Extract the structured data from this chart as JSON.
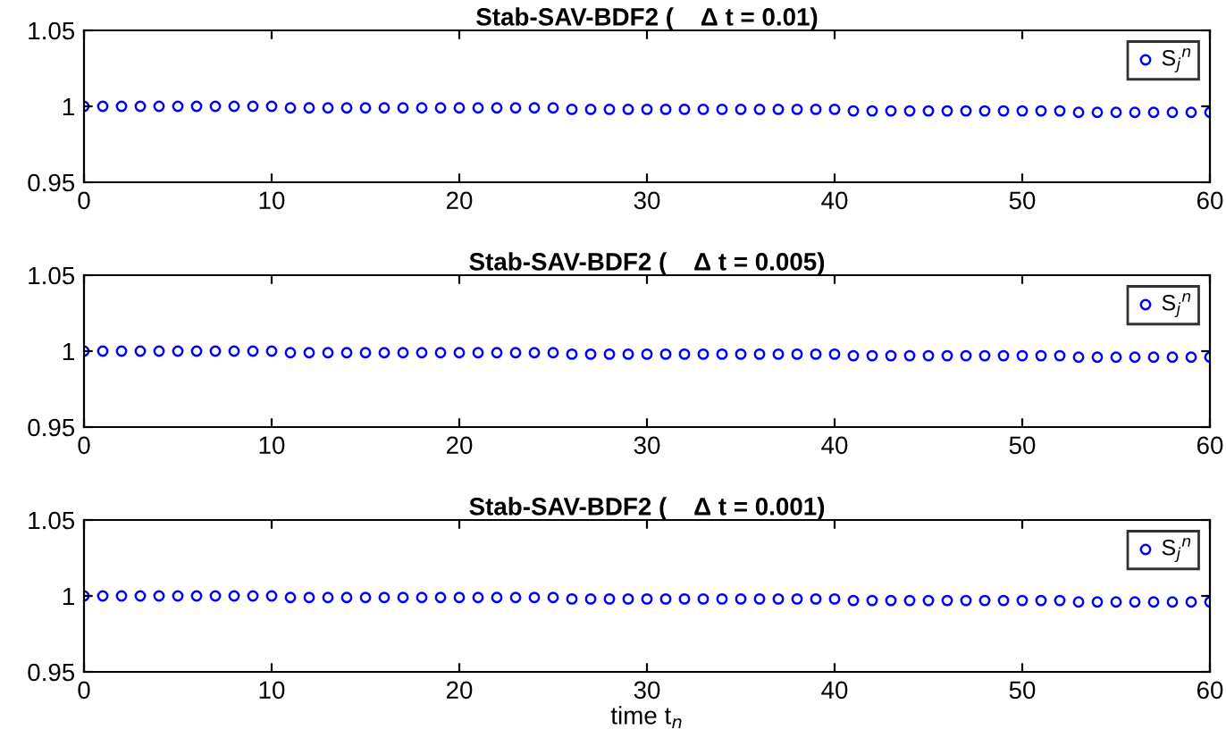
{
  "chart_data": [
    {
      "type": "scatter",
      "title": "Stab-SAV-BDF2 (    Δ t = 0.01)",
      "x": [
        0,
        1,
        2,
        3,
        4,
        5,
        6,
        7,
        8,
        9,
        10,
        11,
        12,
        13,
        14,
        15,
        16,
        17,
        18,
        19,
        20,
        21,
        22,
        23,
        24,
        25,
        26,
        27,
        28,
        29,
        30,
        31,
        32,
        33,
        34,
        35,
        36,
        37,
        38,
        39,
        40,
        41,
        42,
        43,
        44,
        45,
        46,
        47,
        48,
        49,
        50,
        51,
        52,
        53,
        54,
        55,
        56,
        57,
        58,
        59,
        60
      ],
      "series": [
        {
          "name": "S$_{j}$$^{n}$",
          "color": "#0000ff",
          "values": [
            1.0,
            1.0,
            1.0,
            1.0,
            1.0,
            1.0,
            1.0,
            1.0,
            1.0,
            1.0,
            1.0,
            0.999,
            0.999,
            0.999,
            0.999,
            0.999,
            0.999,
            0.999,
            0.999,
            0.999,
            0.999,
            0.999,
            0.999,
            0.999,
            0.999,
            0.999,
            0.998,
            0.998,
            0.998,
            0.998,
            0.998,
            0.998,
            0.998,
            0.998,
            0.998,
            0.998,
            0.998,
            0.998,
            0.998,
            0.998,
            0.998,
            0.997,
            0.997,
            0.997,
            0.997,
            0.997,
            0.997,
            0.997,
            0.997,
            0.997,
            0.997,
            0.997,
            0.997,
            0.996,
            0.996,
            0.996,
            0.996,
            0.996,
            0.996,
            0.996,
            0.996
          ]
        }
      ],
      "xlim": [
        0,
        60
      ],
      "xticks": [
        0,
        10,
        20,
        30,
        40,
        50,
        60
      ],
      "ylim": [
        0.95,
        1.05
      ],
      "yticks": [
        0.95,
        1,
        1.05
      ],
      "marker": "circle",
      "legend": "top right",
      "grid": false
    },
    {
      "type": "scatter",
      "title": "Stab-SAV-BDF2 (    Δ t = 0.005)",
      "x": [
        0,
        1,
        2,
        3,
        4,
        5,
        6,
        7,
        8,
        9,
        10,
        11,
        12,
        13,
        14,
        15,
        16,
        17,
        18,
        19,
        20,
        21,
        22,
        23,
        24,
        25,
        26,
        27,
        28,
        29,
        30,
        31,
        32,
        33,
        34,
        35,
        36,
        37,
        38,
        39,
        40,
        41,
        42,
        43,
        44,
        45,
        46,
        47,
        48,
        49,
        50,
        51,
        52,
        53,
        54,
        55,
        56,
        57,
        58,
        59,
        60
      ],
      "series": [
        {
          "name": "S$_{j}$$^{n}$",
          "color": "#0000ff",
          "values": [
            1.0,
            1.0,
            1.0,
            1.0,
            1.0,
            1.0,
            1.0,
            1.0,
            1.0,
            1.0,
            1.0,
            0.999,
            0.999,
            0.999,
            0.999,
            0.999,
            0.999,
            0.999,
            0.999,
            0.999,
            0.999,
            0.999,
            0.999,
            0.999,
            0.999,
            0.999,
            0.998,
            0.998,
            0.998,
            0.998,
            0.998,
            0.998,
            0.998,
            0.998,
            0.998,
            0.998,
            0.998,
            0.998,
            0.998,
            0.998,
            0.998,
            0.997,
            0.997,
            0.997,
            0.997,
            0.997,
            0.997,
            0.997,
            0.997,
            0.997,
            0.997,
            0.997,
            0.997,
            0.996,
            0.996,
            0.996,
            0.996,
            0.996,
            0.996,
            0.996,
            0.996
          ]
        }
      ],
      "xlim": [
        0,
        60
      ],
      "xticks": [
        0,
        10,
        20,
        30,
        40,
        50,
        60
      ],
      "ylim": [
        0.95,
        1.05
      ],
      "yticks": [
        0.95,
        1,
        1.05
      ],
      "marker": "circle",
      "legend": "top right",
      "grid": false
    },
    {
      "type": "scatter",
      "title": "Stab-SAV-BDF2 (    Δ t = 0.001)",
      "xlabel": "time t$_{n}$",
      "x": [
        0,
        1,
        2,
        3,
        4,
        5,
        6,
        7,
        8,
        9,
        10,
        11,
        12,
        13,
        14,
        15,
        16,
        17,
        18,
        19,
        20,
        21,
        22,
        23,
        24,
        25,
        26,
        27,
        28,
        29,
        30,
        31,
        32,
        33,
        34,
        35,
        36,
        37,
        38,
        39,
        40,
        41,
        42,
        43,
        44,
        45,
        46,
        47,
        48,
        49,
        50,
        51,
        52,
        53,
        54,
        55,
        56,
        57,
        58,
        59,
        60
      ],
      "series": [
        {
          "name": "S$_{j}$$^{n}$",
          "color": "#0000ff",
          "values": [
            1.0,
            1.0,
            1.0,
            1.0,
            1.0,
            1.0,
            1.0,
            1.0,
            1.0,
            1.0,
            1.0,
            0.999,
            0.999,
            0.999,
            0.999,
            0.999,
            0.999,
            0.999,
            0.999,
            0.999,
            0.999,
            0.999,
            0.999,
            0.999,
            0.999,
            0.999,
            0.998,
            0.998,
            0.998,
            0.998,
            0.998,
            0.998,
            0.998,
            0.998,
            0.998,
            0.998,
            0.998,
            0.998,
            0.998,
            0.998,
            0.998,
            0.997,
            0.997,
            0.997,
            0.997,
            0.997,
            0.997,
            0.997,
            0.997,
            0.997,
            0.997,
            0.997,
            0.997,
            0.996,
            0.996,
            0.996,
            0.996,
            0.996,
            0.996,
            0.996,
            0.996
          ]
        }
      ],
      "xlim": [
        0,
        60
      ],
      "xticks": [
        0,
        10,
        20,
        30,
        40,
        50,
        60
      ],
      "ylim": [
        0.95,
        1.05
      ],
      "yticks": [
        0.95,
        1,
        1.05
      ],
      "marker": "circle",
      "legend": "top right",
      "grid": false
    }
  ]
}
